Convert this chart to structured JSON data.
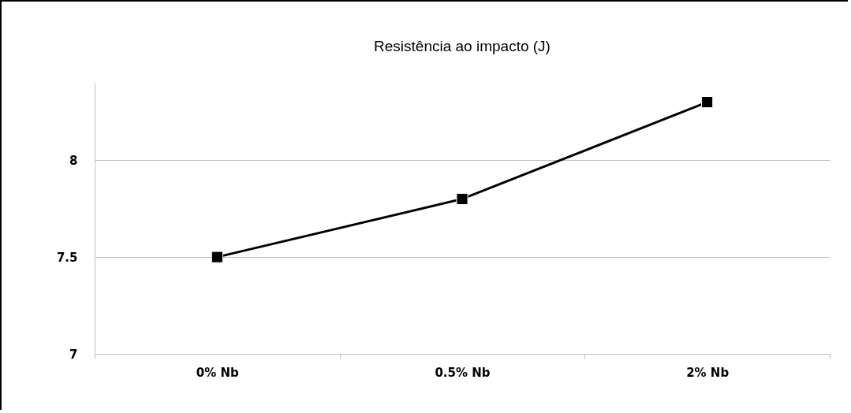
{
  "chart_data": {
    "type": "line",
    "title": "Resistência ao impacto (J)",
    "categories": [
      "0% Nb",
      "0.5% Nb",
      "2% Nb"
    ],
    "series": [
      {
        "color": "#000000",
        "values": [
          7.5,
          7.8,
          8.3
        ]
      }
    ],
    "ylim": [
      7,
      8.4
    ],
    "yticks": [
      7,
      7.5,
      8
    ],
    "grid": "y",
    "marker": "square",
    "line_style": "solid",
    "legend": false
  }
}
